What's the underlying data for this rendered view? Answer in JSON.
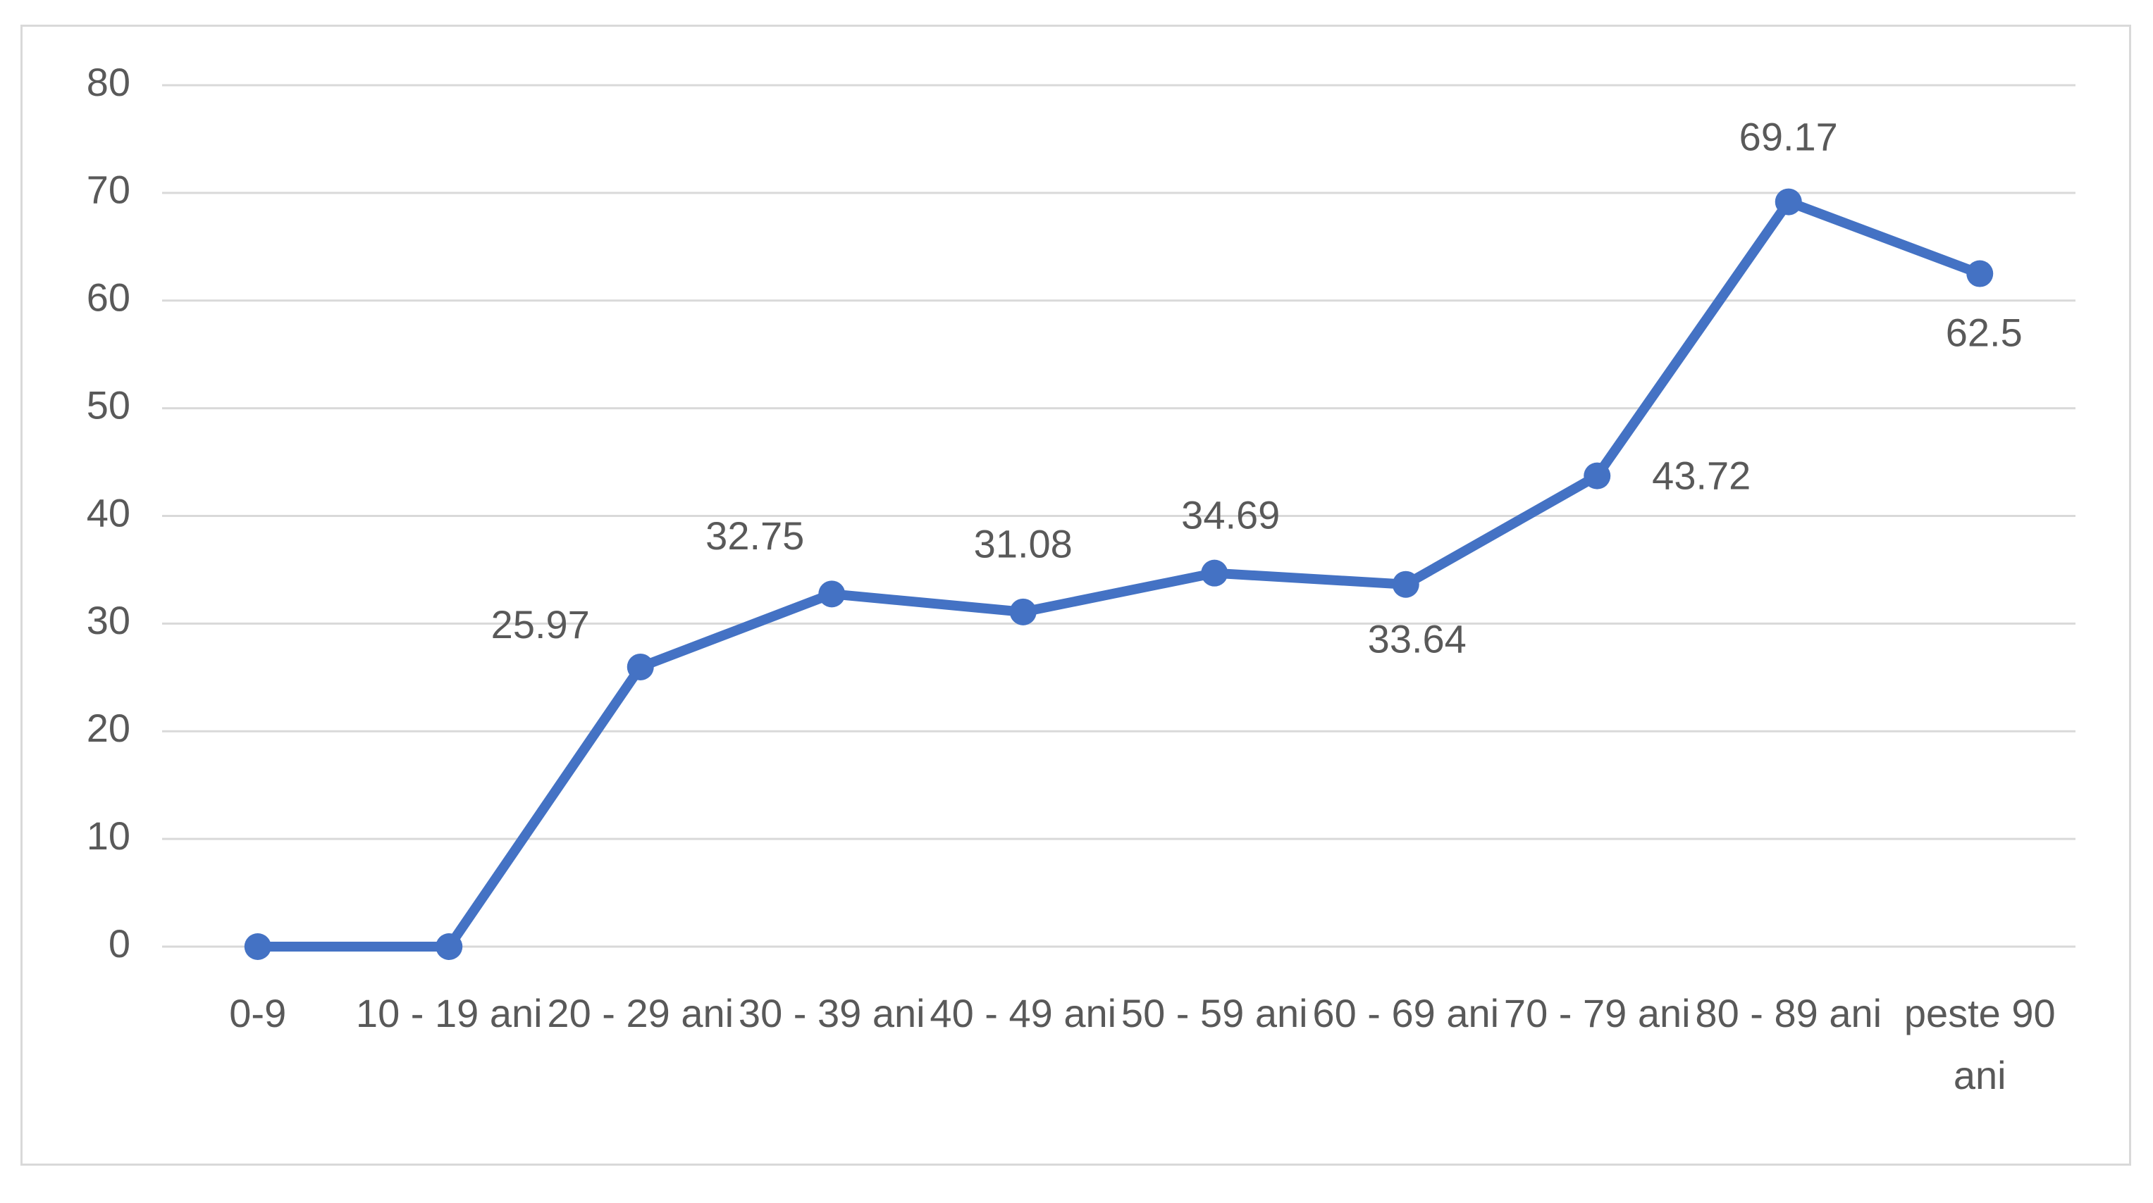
{
  "chart_data": {
    "type": "line",
    "categories": [
      "0-9",
      "10 - 19 ani",
      "20 - 29 ani",
      "30 - 39 ani",
      "40 - 49 ani",
      "50 - 59 ani",
      "60 - 69 ani",
      "70 - 79 ani",
      "80 - 89 ani",
      "peste 90 ani"
    ],
    "values": [
      0,
      0,
      25.97,
      32.75,
      31.08,
      34.69,
      33.64,
      43.72,
      69.17,
      62.5
    ],
    "value_labels": [
      null,
      null,
      "25.97",
      "32.75",
      "31.08",
      "34.69",
      "33.64",
      "43.72",
      "69.17",
      "62.5"
    ],
    "color": "#4472c4",
    "ylim": [
      0,
      80
    ],
    "yticks": [
      0,
      10,
      20,
      30,
      40,
      50,
      60,
      70,
      80
    ],
    "grid": true,
    "markers": true
  }
}
